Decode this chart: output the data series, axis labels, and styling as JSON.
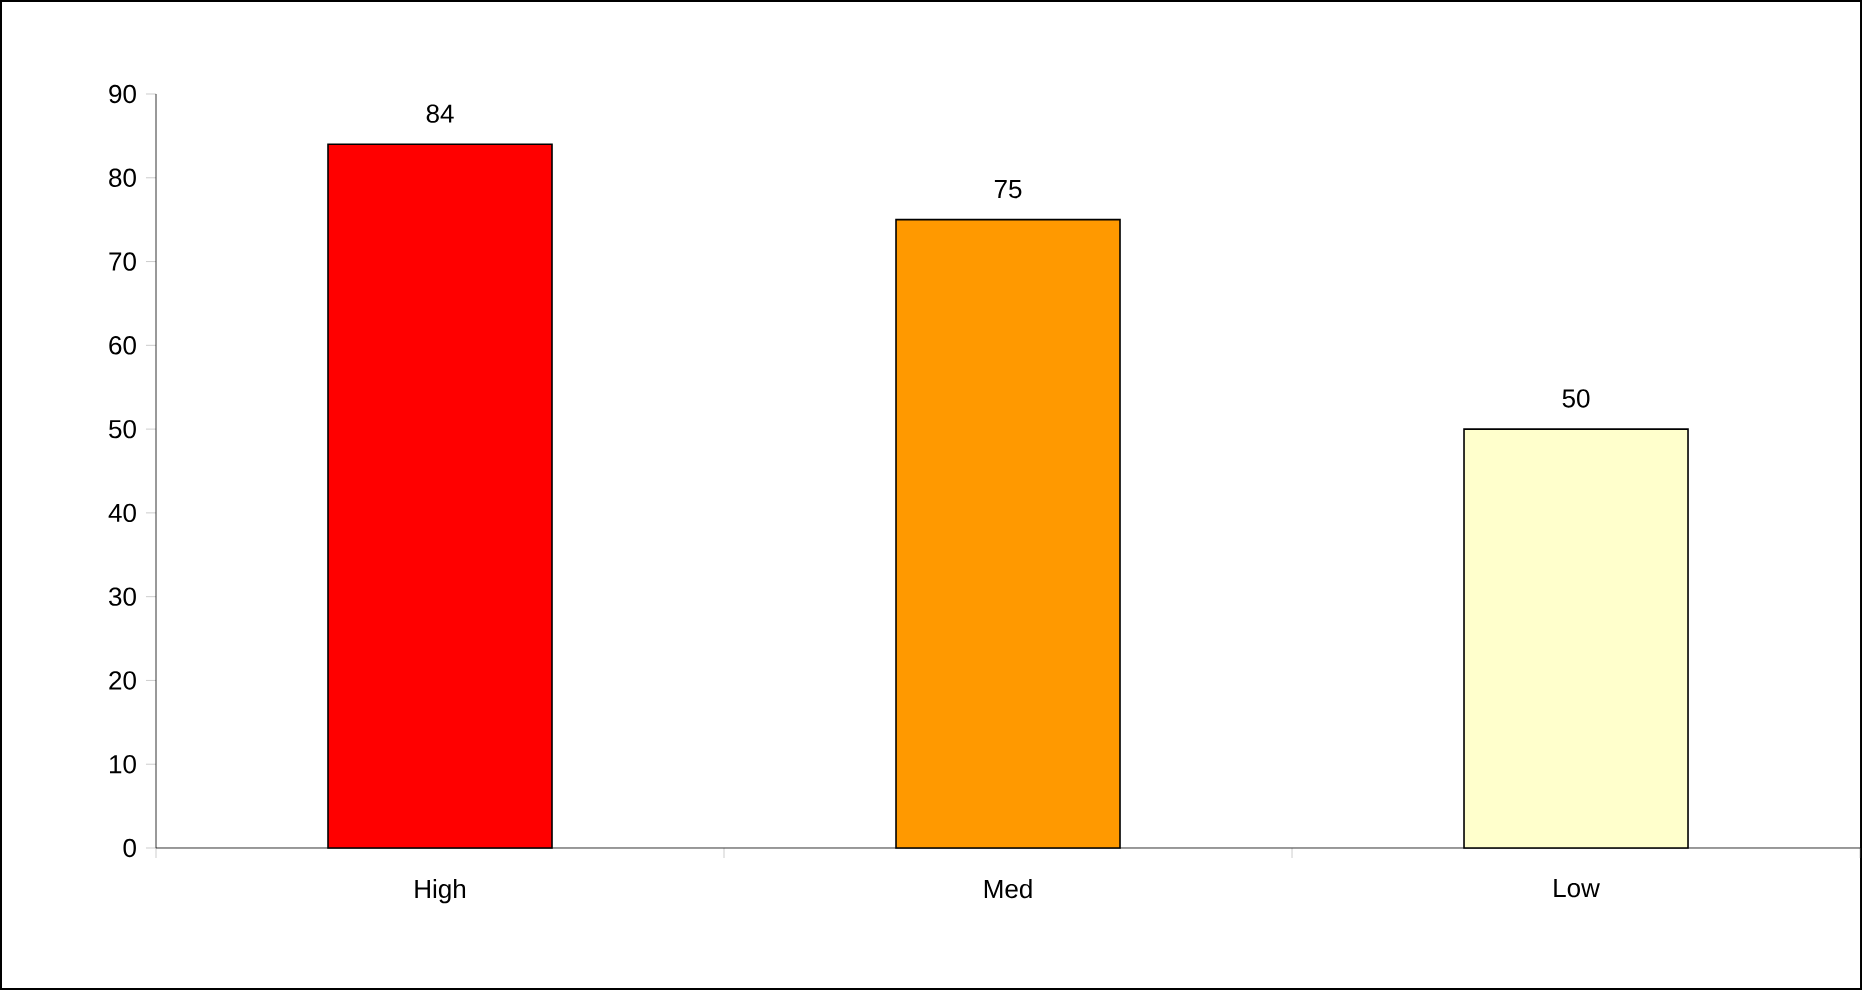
{
  "chart_data": {
    "type": "bar",
    "categories": [
      "High",
      "Med",
      "Low"
    ],
    "values": [
      84,
      75,
      50
    ],
    "colors": [
      "#ff0000",
      "#ff9900",
      "#ffffcc"
    ],
    "ylim": [
      0,
      90
    ],
    "yticks": [
      0,
      10,
      20,
      30,
      40,
      50,
      60,
      70,
      80,
      90
    ],
    "data_labels": true
  }
}
